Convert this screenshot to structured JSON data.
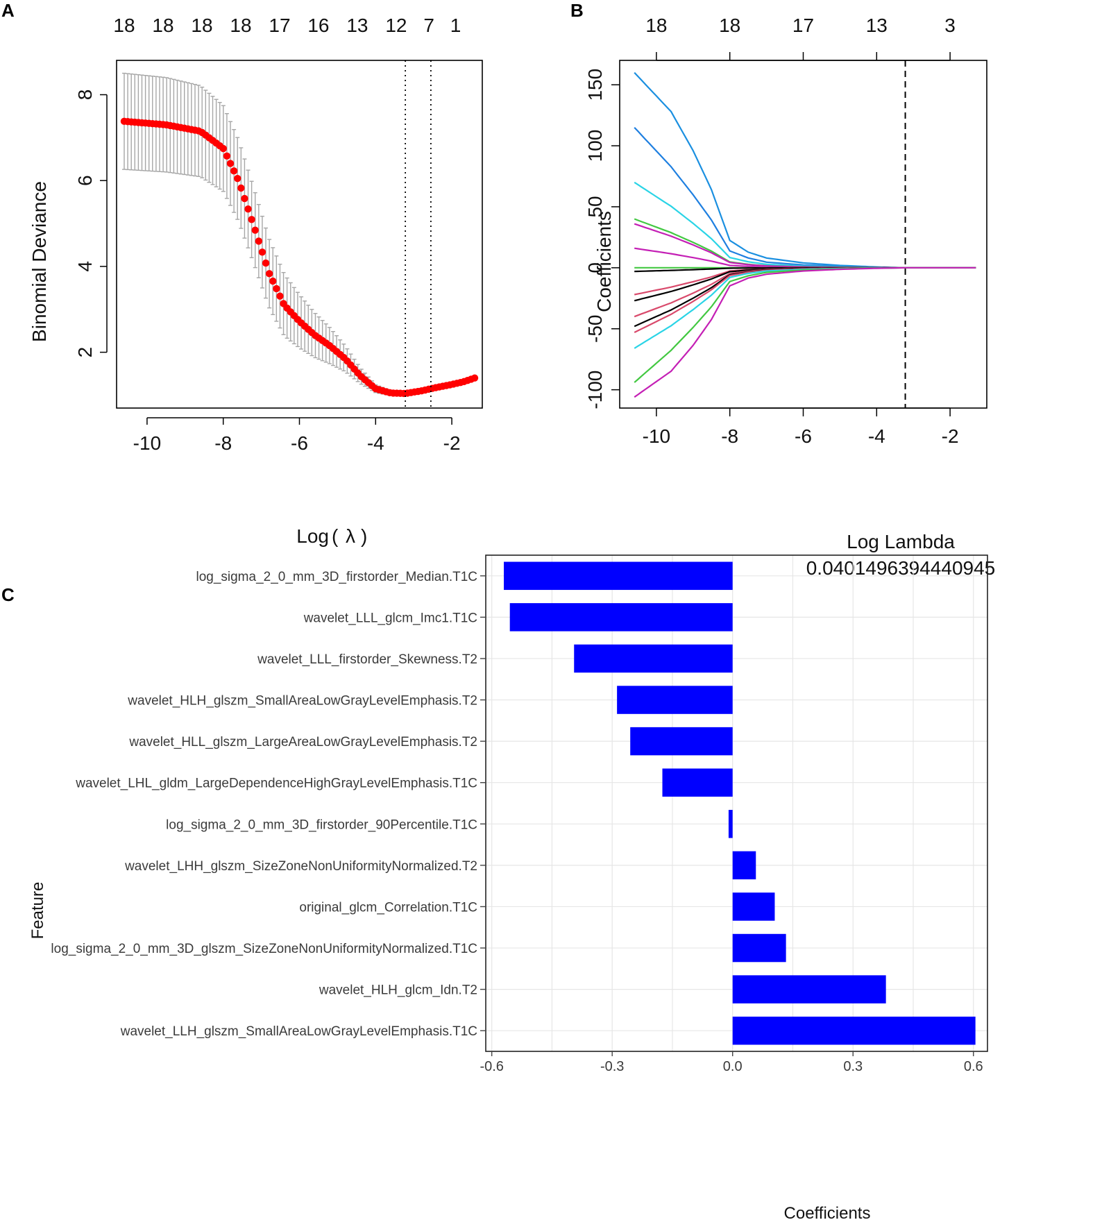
{
  "panel_labels": {
    "a": "A",
    "b": "B",
    "c": "C"
  },
  "colors": {
    "deviance_point": "#ff0000",
    "error_bar": "#a6a6a6",
    "bar_fill": "#0000ff",
    "grid": "#e6e6e6"
  },
  "chart_data": [
    {
      "panel": "A",
      "type": "scatter",
      "title": "",
      "xlabel": "Log",
      "xlabel_symbol": "λ",
      "ylabel": "Binomial Deviance",
      "xlim": [
        -10.8,
        -1.2
      ],
      "ylim": [
        0.7,
        8.8
      ],
      "x_ticks": [
        -10,
        -8,
        -6,
        -4,
        -2
      ],
      "x_tick_labels": [
        "-10",
        "-8",
        "-6",
        "-4",
        "-2"
      ],
      "y_ticks": [
        2,
        4,
        6,
        8
      ],
      "y_tick_labels": [
        "2",
        "4",
        "6",
        "8"
      ],
      "top_ticks": [
        -10.6,
        -9.58,
        -8.56,
        -7.54,
        -6.52,
        -5.5,
        -4.48,
        -3.46,
        -2.6,
        -1.9
      ],
      "top_tick_labels": [
        "18",
        "18",
        "18",
        "18",
        "17",
        "16",
        "13",
        "12",
        "7",
        "1"
      ],
      "vlines": [
        -3.22,
        -2.55
      ],
      "curve_knots": {
        "x": [
          -10.6,
          -9.5,
          -8.6,
          -8.0,
          -7.6,
          -7.2,
          -6.8,
          -6.4,
          -6.0,
          -5.6,
          -5.2,
          -4.8,
          -4.4,
          -4.0,
          -3.6,
          -3.22,
          -2.8,
          -2.4,
          -2.0,
          -1.7,
          -1.4
        ],
        "y": [
          7.38,
          7.3,
          7.15,
          6.75,
          6.0,
          4.95,
          3.85,
          3.1,
          2.72,
          2.4,
          2.15,
          1.85,
          1.45,
          1.15,
          1.05,
          1.04,
          1.1,
          1.18,
          1.25,
          1.31,
          1.4
        ]
      },
      "error_knots": {
        "x": [
          -10.6,
          -9.5,
          -8.6,
          -8.0,
          -7.6,
          -7.2,
          -6.8,
          -6.4,
          -6.0,
          -5.6,
          -5.2,
          -4.8,
          -4.4,
          -4.0,
          -3.6,
          -3.22
        ],
        "e": [
          1.12,
          1.1,
          1.06,
          1.0,
          0.95,
          0.88,
          0.8,
          0.72,
          0.62,
          0.52,
          0.42,
          0.3,
          0.18,
          0.09,
          0.06,
          0.05
        ]
      },
      "n_points": 100
    },
    {
      "panel": "B",
      "type": "line",
      "title": "",
      "xlabel": "Log Lambda",
      "subtitle": "0.0401496394440945",
      "ylabel": "Coefficients",
      "xlim": [
        -11.0,
        -1.0
      ],
      "ylim": [
        -115,
        170
      ],
      "x_ticks": [
        -10,
        -8,
        -6,
        -4,
        -2
      ],
      "x_tick_labels": [
        "-10",
        "-8",
        "-6",
        "-4",
        "-2"
      ],
      "y_ticks": [
        -100,
        -50,
        0,
        50,
        100,
        150
      ],
      "y_tick_labels": [
        "-100",
        "-50",
        "0",
        "50",
        "100",
        "150"
      ],
      "top_ticks": [
        -10,
        -8,
        -6,
        -4,
        -2
      ],
      "top_tick_labels": [
        "18",
        "18",
        "17",
        "13",
        "3"
      ],
      "vline": -3.22,
      "series": [
        {
          "name": "s1",
          "color": "#1a8fe0",
          "start": 160,
          "scale": 1.0,
          "shape": "fast"
        },
        {
          "name": "s2",
          "color": "#1e7fe0",
          "start": 115,
          "scale": 1.0,
          "shape": "slow"
        },
        {
          "name": "s3",
          "color": "#2ad4e6",
          "start": 70,
          "scale": 1.0,
          "shape": "slow"
        },
        {
          "name": "s4",
          "color": "#42c841",
          "start": 40,
          "scale": 1.0,
          "shape": "slow"
        },
        {
          "name": "s5",
          "color": "#c41fb5",
          "start": 36,
          "scale": 1.0,
          "shape": "slow"
        },
        {
          "name": "s6",
          "color": "#c41fb5",
          "start": 16,
          "scale": 1.0,
          "shape": "slow"
        },
        {
          "name": "s7",
          "color": "#42c841",
          "start": 0,
          "scale": 1.0,
          "shape": "slow"
        },
        {
          "name": "s8",
          "color": "#000000",
          "start": -3,
          "scale": 1.0,
          "shape": "slow"
        },
        {
          "name": "s9",
          "color": "#d9496b",
          "start": -22,
          "scale": 1.0,
          "shape": "slow"
        },
        {
          "name": "s10",
          "color": "#000000",
          "start": -27,
          "scale": 1.0,
          "shape": "slow"
        },
        {
          "name": "s11",
          "color": "#d9496b",
          "start": -40,
          "scale": 1.0,
          "shape": "slow"
        },
        {
          "name": "s12",
          "color": "#000000",
          "start": -48,
          "scale": 1.0,
          "shape": "slow"
        },
        {
          "name": "s13",
          "color": "#d9496b",
          "start": -53,
          "scale": 1.0,
          "shape": "slow"
        },
        {
          "name": "s14",
          "color": "#2ad4e6",
          "start": -66,
          "scale": 1.0,
          "shape": "slow"
        },
        {
          "name": "s15",
          "color": "#42c841",
          "start": -94,
          "scale": 1.0,
          "shape": "slow"
        },
        {
          "name": "s16",
          "color": "#c41fb5",
          "start": -106,
          "scale": 1.0,
          "shape": "fast"
        }
      ]
    },
    {
      "panel": "C",
      "type": "bar",
      "orientation": "horizontal",
      "title": "",
      "xlabel": "Coefficients",
      "ylabel": "Feature",
      "xlim": [
        -0.615,
        0.635
      ],
      "x_ticks": [
        -0.6,
        -0.3,
        0.0,
        0.3,
        0.6
      ],
      "x_tick_labels": [
        "-0.6",
        "-0.3",
        "0.0",
        "0.3",
        "0.6"
      ],
      "categories": [
        "log_sigma_2_0_mm_3D_firstorder_Median.T1C",
        "wavelet_LLL_glcm_Imc1.T1C",
        "wavelet_LLL_firstorder_Skewness.T2",
        "wavelet_HLH_glszm_SmallAreaLowGrayLevelEmphasis.T2",
        "wavelet_HLL_glszm_LargeAreaLowGrayLevelEmphasis.T2",
        "wavelet_LHL_gldm_LargeDependenceHighGrayLevelEmphasis.T1C",
        "log_sigma_2_0_mm_3D_firstorder_90Percentile.T1C",
        "wavelet_LHH_glszm_SizeZoneNonUniformityNormalized.T2",
        "original_glcm_Correlation.T1C",
        "log_sigma_2_0_mm_3D_glszm_SizeZoneNonUniformityNormalized.T1C",
        "wavelet_HLH_glcm_Idn.T2",
        "wavelet_LLH_glszm_SmallAreaLowGrayLevelEmphasis.T1C"
      ],
      "values": [
        -0.57,
        -0.555,
        -0.395,
        -0.288,
        -0.255,
        -0.175,
        -0.01,
        0.058,
        0.105,
        0.133,
        0.382,
        0.605
      ]
    }
  ]
}
